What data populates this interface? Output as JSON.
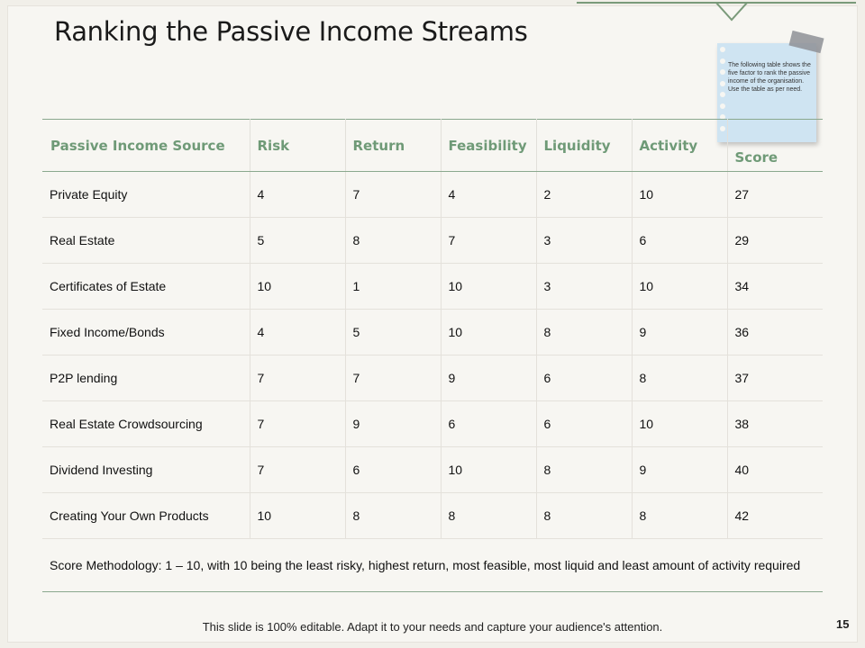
{
  "title": "Ranking the Passive Income Streams",
  "note": {
    "text": "The following table shows the five factor to rank the passive income of the organisation. Use the table as per need."
  },
  "table": {
    "headers": [
      "Passive Income Source",
      "Risk",
      "Return",
      "Feasibility",
      "Liquidity",
      "Activity",
      "Score"
    ],
    "rows": [
      [
        "Private Equity",
        "4",
        "7",
        "4",
        "2",
        "10",
        "27"
      ],
      [
        "Real Estate",
        "5",
        "8",
        "7",
        "3",
        "6",
        "29"
      ],
      [
        "Certificates of Estate",
        "10",
        "1",
        "10",
        "3",
        "10",
        "34"
      ],
      [
        "Fixed Income/Bonds",
        "4",
        "5",
        "10",
        "8",
        "9",
        "36"
      ],
      [
        "P2P lending",
        "7",
        "7",
        "9",
        "6",
        "8",
        "37"
      ],
      [
        "Real Estate Crowdsourcing",
        "7",
        "9",
        "6",
        "6",
        "10",
        "38"
      ],
      [
        "Dividend Investing",
        "7",
        "6",
        "10",
        "8",
        "9",
        "40"
      ],
      [
        "Creating Your Own Products",
        "10",
        "8",
        "8",
        "8",
        "8",
        "42"
      ]
    ],
    "methodology": "Score Methodology:  1 – 10, with 10 being the least risky, highest return, most feasible, most liquid and least amount of activity required"
  },
  "footer": "This slide is 100% editable. Adapt it to your needs and capture your audience's attention.",
  "page_number": "15",
  "colors": {
    "header_text": "#6f9a77",
    "rule": "#8aa88e",
    "note_bg": "#cfe4f2"
  }
}
